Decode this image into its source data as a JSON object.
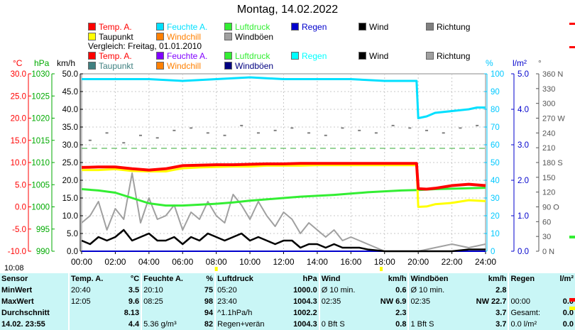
{
  "title": "Montag, 14.02.2022",
  "legend_current": [
    {
      "label": "Temp. A.",
      "color": "#ff0000"
    },
    {
      "label": "Feuchte A.",
      "color": "#00e0ff"
    },
    {
      "label": "Luftdruck",
      "color": "#33ee33"
    },
    {
      "label": "Regen",
      "color": "#0000cc"
    },
    {
      "label": "Wind",
      "color": "#000000"
    },
    {
      "label": "Richtung",
      "color": "#808080"
    },
    {
      "label": "Taupunkt",
      "color": "#ffff00"
    },
    {
      "label": "Windchill",
      "color": "#ff8000"
    },
    {
      "label": "Windböen",
      "color": "#a0a0a0"
    }
  ],
  "comparison_label": "Vergleich: Freitag, 01.01.2010",
  "legend_compare": [
    {
      "label": "Temp. A.",
      "color": "#ff0000"
    },
    {
      "label": "Feuchte A.",
      "color": "#8000ff"
    },
    {
      "label": "Luftdruck",
      "color": "#33ee33"
    },
    {
      "label": "Regen",
      "color": "#00ffff"
    },
    {
      "label": "Wind",
      "color": "#000000"
    },
    {
      "label": "Richtung",
      "color": "#a0a0a0"
    },
    {
      "label": "Taupunkt",
      "color": "#408080"
    },
    {
      "label": "Windchill",
      "color": "#ff8000"
    },
    {
      "label": "Windböen",
      "color": "#000080"
    }
  ],
  "units": {
    "temp": "°C",
    "press": "hPa",
    "wind": "km/h",
    "hum": "%",
    "rain": "l/m²",
    "dir": "°"
  },
  "chart_data": {
    "type": "line",
    "title": "Montag, 14.02.2022",
    "x_ticks": [
      "00:00",
      "02:00",
      "04:00",
      "06:00",
      "08:00",
      "10:00",
      "12:00",
      "14:00",
      "16:00",
      "18:00",
      "20:00",
      "22:00",
      "24:00"
    ],
    "axes": {
      "temp": {
        "label": "°C",
        "ylim": [
          -10,
          30
        ],
        "ticks": [
          "30.0",
          "25.0",
          "20.0",
          "15.0",
          "10.0",
          "5.0",
          "0.0",
          "-5.0",
          "-10.0"
        ]
      },
      "pressure": {
        "label": "hPa",
        "ylim": [
          990,
          1030
        ],
        "ticks": [
          "1030",
          "1025",
          "1020",
          "1015",
          "1010",
          "1005",
          "1000",
          "995",
          "990"
        ]
      },
      "wind": {
        "label": "km/h",
        "ylim": [
          0,
          50
        ],
        "ticks": [
          "50.0",
          "45.0",
          "40.0",
          "35.0",
          "30.0",
          "25.0",
          "20.0",
          "15.0",
          "10.0",
          "5.0",
          "0.0"
        ]
      },
      "humidity": {
        "label": "%",
        "ylim": [
          0,
          100
        ],
        "ticks": [
          "100",
          "90",
          "80",
          "70",
          "60",
          "50",
          "40",
          "30",
          "20",
          "10",
          "0"
        ]
      },
      "rain": {
        "label": "l/m²",
        "ylim": [
          0,
          5
        ],
        "ticks": [
          "5.0",
          "4.0",
          "3.0",
          "2.0",
          "1.0",
          "0.0"
        ]
      },
      "direction": {
        "label": "°",
        "ylim": [
          0,
          360
        ],
        "ticks": [
          "360 N",
          "330",
          "300",
          "270 W",
          "240",
          "210",
          "180 S",
          "150",
          "120",
          "90 O",
          "60",
          "30",
          "0 N"
        ]
      }
    },
    "series": [
      {
        "name": "Temp. A.",
        "axis": "temp",
        "color": "#ff0000",
        "x": [
          0,
          1,
          2,
          3,
          4,
          5,
          6,
          7,
          8,
          9,
          10,
          11,
          12,
          13,
          14,
          15,
          16,
          17,
          18,
          19,
          19.9,
          20,
          20.5,
          21,
          22,
          23,
          24
        ],
        "y": [
          8.9,
          9.0,
          9.0,
          8.6,
          8.3,
          8.6,
          9.3,
          9.4,
          9.5,
          9.5,
          9.6,
          9.7,
          9.7,
          9.8,
          9.8,
          9.8,
          9.8,
          9.8,
          9.8,
          9.8,
          9.8,
          4.1,
          4.0,
          4.2,
          4.8,
          5.1,
          4.8
        ]
      },
      {
        "name": "Taupunkt",
        "axis": "temp",
        "color": "#ffff00",
        "x": [
          0,
          1,
          2,
          3,
          4,
          5,
          6,
          7,
          8,
          9,
          10,
          11,
          12,
          13,
          14,
          15,
          16,
          17,
          18,
          19,
          19.9,
          20,
          20.5,
          21,
          22,
          23,
          24
        ],
        "y": [
          8.3,
          8.3,
          8.5,
          8.1,
          8.0,
          8.0,
          8.7,
          8.9,
          9.0,
          9.1,
          9.1,
          9.3,
          9.3,
          9.3,
          9.4,
          9.4,
          9.4,
          9.4,
          9.4,
          9.4,
          9.4,
          0.0,
          0.1,
          0.6,
          0.9,
          1.5,
          1.3
        ]
      },
      {
        "name": "Feuchte A.",
        "axis": "humidity",
        "color": "#00e0ff",
        "x": [
          0,
          2,
          4,
          6,
          8,
          10,
          12,
          14,
          16,
          18,
          19.9,
          20,
          20.5,
          21,
          22,
          23,
          23.5,
          24
        ],
        "y": [
          97,
          97,
          97,
          96,
          97,
          98,
          97,
          97,
          97,
          96,
          96,
          75,
          76,
          78,
          79,
          80,
          81,
          81
        ]
      },
      {
        "name": "Luftdruck",
        "axis": "pressure",
        "color": "#33ee33",
        "x": [
          0,
          1,
          2,
          3,
          4,
          5,
          6,
          7,
          8,
          9,
          10,
          11,
          12,
          13,
          14,
          15,
          16,
          17,
          18,
          19,
          20,
          21,
          22,
          23,
          24
        ],
        "y": [
          1004.0,
          1003.7,
          1003.2,
          1002.0,
          1000.8,
          1000.3,
          1000.3,
          1000.5,
          1000.7,
          1001.0,
          1001.4,
          1001.7,
          1002.0,
          1002.3,
          1002.5,
          1002.7,
          1003.0,
          1003.3,
          1003.5,
          1003.7,
          1003.8,
          1004.0,
          1004.1,
          1004.2,
          1004.3
        ]
      },
      {
        "name": "Wind",
        "axis": "wind",
        "color": "#000000",
        "x": [
          0,
          0.5,
          1,
          1.5,
          2,
          2.5,
          3,
          3.5,
          4,
          4.5,
          5,
          5.5,
          6,
          6.5,
          7,
          7.5,
          8,
          8.5,
          9,
          9.5,
          10,
          10.5,
          11,
          11.5,
          12,
          12.5,
          13,
          13.5,
          14,
          14.5,
          15,
          15.5,
          16,
          16.5,
          17,
          18,
          19,
          20,
          21,
          22,
          23,
          24
        ],
        "y": [
          3,
          2,
          4,
          3,
          4,
          6,
          3,
          4,
          5,
          3,
          3,
          4,
          2,
          4,
          3,
          5,
          4,
          3,
          4,
          5,
          3,
          4,
          3,
          2,
          3,
          3,
          1,
          2,
          2,
          1,
          2,
          1,
          1,
          1,
          0.5,
          0,
          0,
          0,
          0,
          0,
          0.5,
          0.5
        ]
      },
      {
        "name": "Windböen",
        "axis": "wind",
        "color": "#a0a0a0",
        "x": [
          0,
          0.5,
          1,
          1.5,
          2,
          2.5,
          3,
          3.5,
          4,
          4.5,
          5,
          5.5,
          6,
          6.5,
          7,
          7.5,
          8,
          8.5,
          9,
          9.5,
          10,
          10.5,
          11,
          11.5,
          12,
          12.5,
          13,
          13.5,
          14,
          14.5,
          15,
          15.5,
          16,
          16.5,
          17,
          18,
          19,
          20,
          21,
          22,
          23,
          24
        ],
        "y": [
          8,
          10,
          14,
          6,
          12,
          9,
          22,
          8,
          15,
          9,
          10,
          13,
          6,
          11,
          9,
          14,
          10,
          8,
          16,
          13,
          9,
          14,
          10,
          7,
          11,
          9,
          5,
          8,
          6,
          4,
          6,
          3,
          4,
          3,
          2,
          0,
          0,
          0,
          1,
          2,
          1,
          2
        ]
      },
      {
        "name": "Regen",
        "axis": "rain",
        "color": "#0000cc",
        "x": [
          0,
          24
        ],
        "y": [
          0,
          0
        ]
      },
      {
        "name": "Richtung",
        "axis": "direction",
        "color": "#808080",
        "x": [
          0.5,
          1.5,
          2.5,
          3.5,
          4.5,
          5.5,
          6.5,
          7.5,
          8.5,
          9.5,
          10.5,
          11.5,
          12.5,
          13.5,
          14.5,
          15.5,
          16.5,
          17.5,
          18.5,
          19.5,
          20.5,
          21.5,
          22.5,
          23.5
        ],
        "y": [
          225,
          240,
          220,
          235,
          230,
          245,
          250,
          240,
          235,
          255,
          240,
          245,
          250,
          240,
          235,
          250,
          245,
          240,
          255,
          250,
          245,
          240,
          250,
          255
        ]
      }
    ],
    "reference_lines": [
      {
        "axis": "humidity",
        "value": 58,
        "color": "#33aa33",
        "style": "dashed"
      }
    ],
    "grid": true
  },
  "footer": {
    "time_label": "10:08"
  },
  "stats": {
    "headers": [
      "Sensor",
      "Temp. A.",
      "°C",
      "Feuchte A.",
      "%",
      "Luftdruck",
      "hPa",
      "Wind",
      "km/h",
      "Windböen",
      "km/h",
      "Regen",
      "l/m²"
    ],
    "rows": [
      [
        "MinWert",
        "20:40",
        "3.5",
        "20:10",
        "75",
        "05:20",
        "1000.0",
        "Ø 10 min.",
        "0.6",
        "Ø 10 min.",
        "2.8",
        "",
        ""
      ],
      [
        "MaxWert",
        "12:05",
        "9.6",
        "08:25",
        "98",
        "23:40",
        "1004.3",
        "02:35",
        "NW 6.9",
        "02:35",
        "NW 22.7",
        "00:00",
        "0.0"
      ],
      [
        "Durchschnitt",
        "",
        "8.13",
        "",
        "94",
        "^1.1hPa/h",
        "1002.2",
        "",
        "2.3",
        "",
        "3.7",
        "Gesamt:",
        "0.0"
      ],
      [
        "14.02. 23:55",
        "",
        "4.4",
        "5.36 g/m³",
        "82",
        "Regen+verän",
        "1004.3",
        "0 Bft S",
        "0.8",
        "1 Bft S",
        "3.7",
        "0.0 l/m²",
        "0.0"
      ]
    ]
  }
}
